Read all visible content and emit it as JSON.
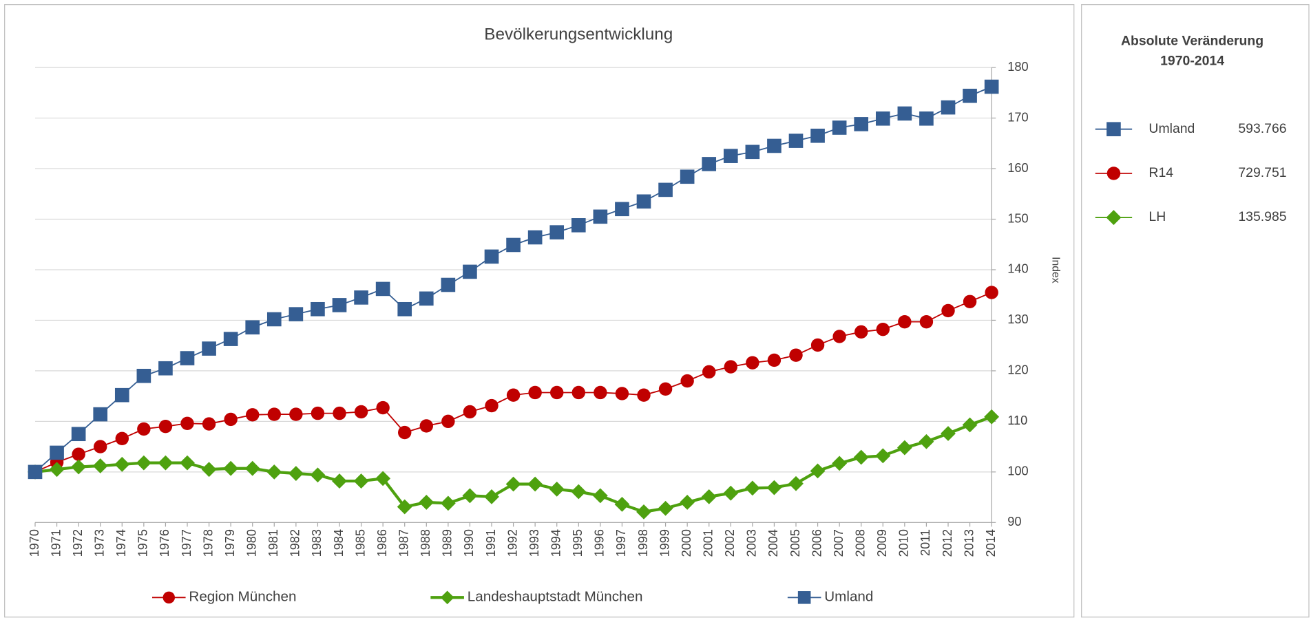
{
  "chart_data": {
    "type": "line",
    "title": "Bevölkerungsentwicklung",
    "y_label": "Index",
    "categories": [
      "1970",
      "1971",
      "1972",
      "1973",
      "1974",
      "1975",
      "1976",
      "1977",
      "1978",
      "1979",
      "1980",
      "1981",
      "1982",
      "1983",
      "1984",
      "1985",
      "1986",
      "1987",
      "1988",
      "1989",
      "1990",
      "1991",
      "1992",
      "1993",
      "1994",
      "1995",
      "1996",
      "1997",
      "1998",
      "1999",
      "2000",
      "2001",
      "2002",
      "2003",
      "2004",
      "2005",
      "2006",
      "2007",
      "2008",
      "2009",
      "2010",
      "2011",
      "2012",
      "2013",
      "2014"
    ],
    "series": [
      {
        "name": "Region München",
        "color": "#c00000",
        "marker": "circle",
        "width": 1.5,
        "values": [
          100,
          101.9,
          103.5,
          105,
          106.6,
          108.5,
          109,
          109.6,
          109.5,
          110.4,
          111.3,
          111.4,
          111.4,
          111.6,
          111.6,
          111.9,
          112.7,
          107.8,
          109.1,
          110,
          111.9,
          113.1,
          115.2,
          115.7,
          115.7,
          115.7,
          115.7,
          115.5,
          115.2,
          116.4,
          118,
          119.8,
          120.8,
          121.6,
          122.1,
          123.1,
          125.1,
          126.8,
          127.7,
          128.2,
          129.7,
          129.7,
          131.9,
          133.7,
          135.5
        ]
      },
      {
        "name": "Landeshauptstadt München",
        "color": "#4ea10f",
        "marker": "diamond",
        "width": 3.5,
        "values": [
          100,
          100.5,
          101,
          101.2,
          101.5,
          101.8,
          101.8,
          101.8,
          100.5,
          100.7,
          100.7,
          100,
          99.7,
          99.4,
          98.2,
          98.2,
          98.7,
          93.1,
          94,
          93.8,
          95.3,
          95.1,
          97.6,
          97.6,
          96.6,
          96.1,
          95.3,
          93.6,
          92.1,
          92.8,
          94,
          95.1,
          95.8,
          96.8,
          96.9,
          97.7,
          100.2,
          101.7,
          102.9,
          103.2,
          104.8,
          106,
          107.6,
          109.3,
          110.9
        ]
      },
      {
        "name": "Umland",
        "color": "#355e93",
        "marker": "square",
        "width": 1.5,
        "values": [
          100,
          103.8,
          107.5,
          111.4,
          115.2,
          119,
          120.5,
          122.5,
          124.4,
          126.3,
          128.6,
          130.2,
          131.2,
          132.2,
          133,
          134.5,
          136.2,
          132.2,
          134.3,
          137,
          139.6,
          142.6,
          144.9,
          146.4,
          147.4,
          148.8,
          150.5,
          152,
          153.5,
          155.8,
          158.4,
          160.9,
          162.5,
          163.3,
          164.5,
          165.5,
          166.5,
          168.1,
          168.8,
          169.9,
          170.9,
          169.9,
          172.1,
          174.4,
          176.2
        ]
      }
    ],
    "ylim": [
      90,
      180
    ],
    "yticks": [
      90,
      100,
      110,
      120,
      130,
      140,
      150,
      160,
      170,
      180
    ],
    "grid": true
  },
  "summary": {
    "title_lines": [
      "Absolute Veränderung",
      "1970-2014"
    ],
    "items": [
      {
        "name": "Umland",
        "value": "593.766",
        "color": "#355e93",
        "marker": "square"
      },
      {
        "name": "R14",
        "value": "729.751",
        "color": "#c00000",
        "marker": "circle"
      },
      {
        "name": "LH",
        "value": "135.985",
        "color": "#4ea10f",
        "marker": "diamond"
      }
    ]
  }
}
